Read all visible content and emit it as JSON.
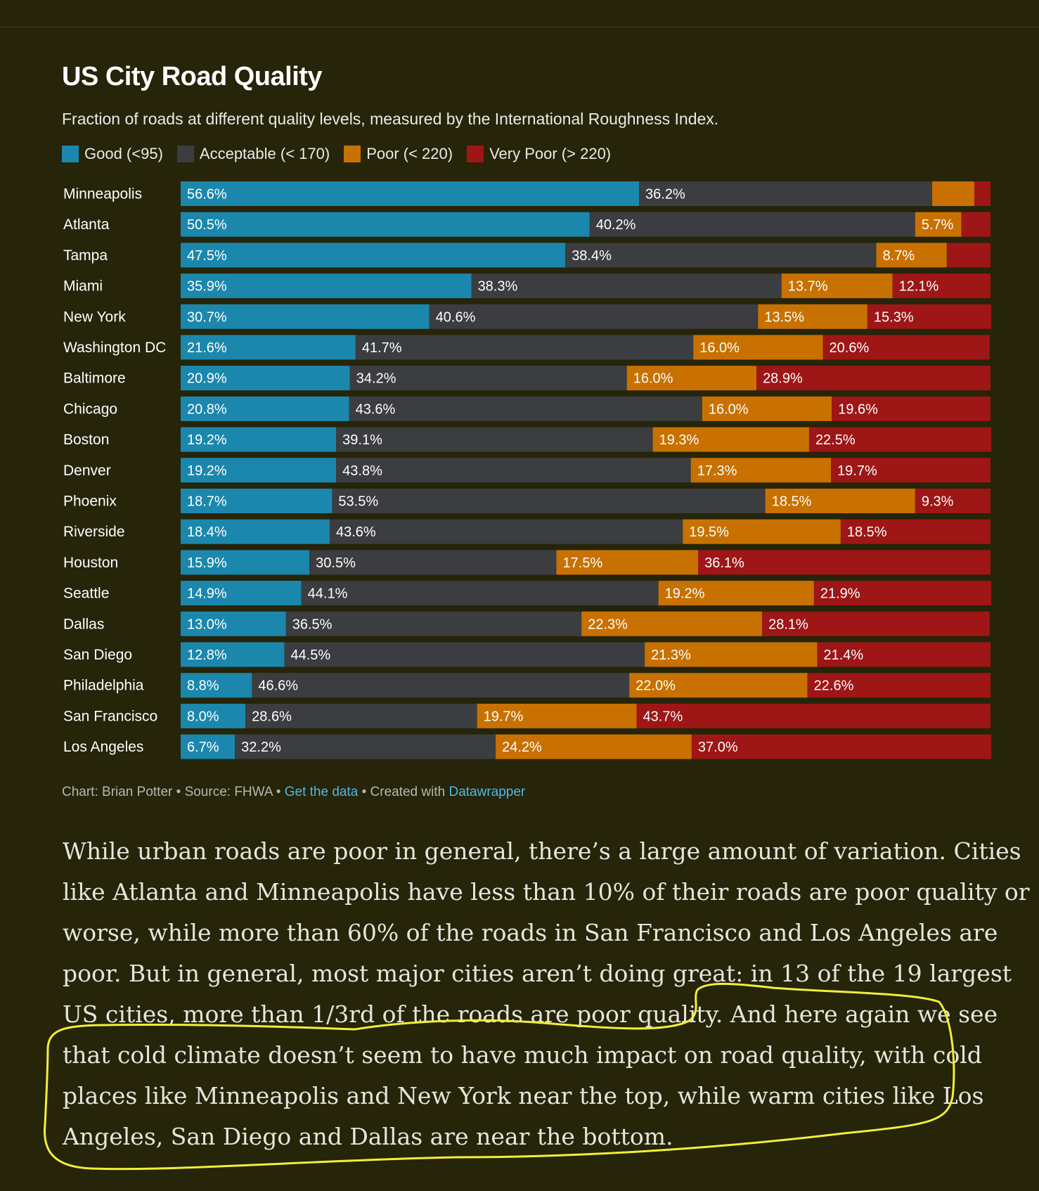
{
  "chart_data": {
    "type": "bar",
    "stacked": true,
    "orientation": "horizontal",
    "title": "US City Road Quality",
    "subtitle": "Fraction of roads at different quality levels, measured by the International Roughness Index.",
    "legend_placement": "top-left",
    "xlim": [
      0,
      100
    ],
    "categories": [
      "Minneapolis",
      "Atlanta",
      "Tampa",
      "Miami",
      "New York",
      "Washington DC",
      "Baltimore",
      "Chicago",
      "Boston",
      "Denver",
      "Phoenix",
      "Riverside",
      "Houston",
      "Seattle",
      "Dallas",
      "San Diego",
      "Philadelphia",
      "San Francisco",
      "Los Angeles"
    ],
    "series": [
      {
        "name": "Good (<95)",
        "color": "#1b87ad",
        "values": [
          56.6,
          50.5,
          47.5,
          35.9,
          30.7,
          21.6,
          20.9,
          20.8,
          19.2,
          19.2,
          18.7,
          18.4,
          15.9,
          14.9,
          13.0,
          12.8,
          8.8,
          8.0,
          6.7
        ]
      },
      {
        "name": "Acceptable (< 170)",
        "color": "#3b3d40",
        "values": [
          36.2,
          40.2,
          38.4,
          38.3,
          40.6,
          41.7,
          34.2,
          43.6,
          39.1,
          43.8,
          53.5,
          43.6,
          30.5,
          44.1,
          36.5,
          44.5,
          46.6,
          28.6,
          32.2
        ]
      },
      {
        "name": "Poor (< 220)",
        "color": "#c87100",
        "values": [
          5.2,
          5.7,
          8.7,
          13.7,
          13.5,
          16.0,
          16.0,
          16.0,
          19.3,
          17.3,
          18.5,
          19.5,
          17.5,
          19.2,
          22.3,
          21.3,
          22.0,
          19.7,
          24.2
        ]
      },
      {
        "name": "Very Poor (> 220)",
        "color": "#9e1616",
        "values": [
          2.0,
          3.6,
          5.4,
          12.1,
          15.3,
          20.6,
          28.9,
          19.6,
          22.5,
          19.7,
          9.3,
          18.5,
          36.1,
          21.9,
          28.1,
          21.4,
          22.6,
          43.7,
          37.0
        ]
      }
    ],
    "labels": [
      [
        "56.6%",
        "36.2%",
        "",
        ""
      ],
      [
        "50.5%",
        "40.2%",
        "5.7%",
        ""
      ],
      [
        "47.5%",
        "38.4%",
        "8.7%",
        ""
      ],
      [
        "35.9%",
        "38.3%",
        "13.7%",
        "12.1%"
      ],
      [
        "30.7%",
        "40.6%",
        "13.5%",
        "15.3%"
      ],
      [
        "21.6%",
        "41.7%",
        "16.0%",
        "20.6%"
      ],
      [
        "20.9%",
        "34.2%",
        "16.0%",
        "28.9%"
      ],
      [
        "20.8%",
        "43.6%",
        "16.0%",
        "19.6%"
      ],
      [
        "19.2%",
        "39.1%",
        "19.3%",
        "22.5%"
      ],
      [
        "19.2%",
        "43.8%",
        "17.3%",
        "19.7%"
      ],
      [
        "18.7%",
        "53.5%",
        "18.5%",
        "9.3%"
      ],
      [
        "18.4%",
        "43.6%",
        "19.5%",
        "18.5%"
      ],
      [
        "15.9%",
        "30.5%",
        "17.5%",
        "36.1%"
      ],
      [
        "14.9%",
        "44.1%",
        "19.2%",
        "21.9%"
      ],
      [
        "13.0%",
        "36.5%",
        "22.3%",
        "28.1%"
      ],
      [
        "12.8%",
        "44.5%",
        "21.3%",
        "21.4%"
      ],
      [
        "8.8%",
        "46.6%",
        "22.0%",
        "22.6%"
      ],
      [
        "8.0%",
        "28.6%",
        "19.7%",
        "43.7%"
      ],
      [
        "6.7%",
        "32.2%",
        "24.2%",
        "37.0%"
      ]
    ]
  },
  "credits": {
    "chart": "Chart: Brian Potter",
    "sep1": " • ",
    "source": "Source: FHWA",
    "sep2": " • ",
    "data_link": "Get the data",
    "sep3": " • ",
    "created": "Created with ",
    "tool_link": "Datawrapper"
  },
  "article": {
    "lines": [
      "While urban roads are poor in general, there’s a large amount of variation. Cities",
      "like Atlanta and Minneapolis have less than 10% of their roads are poor quality or",
      "worse, while more than 60% of the roads in San Francisco and Los Angeles are",
      "poor. But in general, most major cities aren’t doing great: in 13 of the 19 largest",
      "US cities, more than 1/3rd of the roads are poor quality. And here again we see",
      "that cold climate doesn’t seem to have much impact on road quality, with cold",
      "places like Minneapolis and New York near the top, while warm cities like Los",
      "Angeles, San Diego and Dallas are near the bottom."
    ]
  },
  "annotation": {
    "color": "#f3ee3a"
  }
}
